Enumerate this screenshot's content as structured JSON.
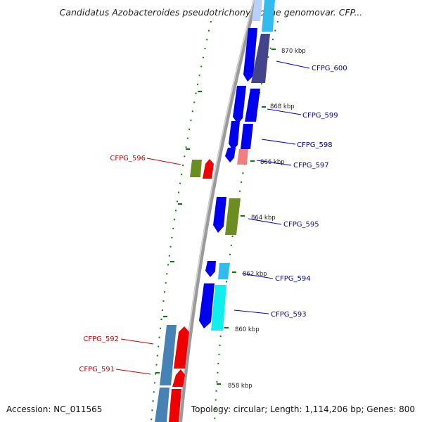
{
  "title": "Candidatus Azobacteroides pseudotrichonymphae genomovar. CFP...",
  "footer": {
    "accession": "Accession: NC_011565",
    "summary": "Topology: circular; Length: 1,114,206 bp; Genes: 800"
  },
  "colors": {
    "forward_cds": "#0000ee",
    "reverse_cds": "#ee0000",
    "light_blue": "#33bbee",
    "cyan": "#11eeee",
    "olive": "#6b8e23",
    "slate": "#44448a",
    "steel_blue": "#4682b4",
    "salmon": "#f08080",
    "tick_green": "#008000",
    "backbone": "#888888"
  },
  "ruler": [
    {
      "label": "870 kbp"
    },
    {
      "label": "868 kbp"
    },
    {
      "label": "866 kbp"
    },
    {
      "label": "864 kbp"
    },
    {
      "label": "862 kbp"
    },
    {
      "label": "860 kbp"
    },
    {
      "label": "858 kbp"
    }
  ],
  "genes": [
    {
      "label": "CFPG_600",
      "strand": "forward"
    },
    {
      "label": "CFPG_599",
      "strand": "forward"
    },
    {
      "label": "CFPG_598",
      "strand": "forward"
    },
    {
      "label": "CFPG_597",
      "strand": "forward"
    },
    {
      "label": "CFPG_595",
      "strand": "forward"
    },
    {
      "label": "CFPG_594",
      "strand": "forward"
    },
    {
      "label": "CFPG_593",
      "strand": "forward"
    },
    {
      "label": "CFPG_596",
      "strand": "reverse"
    },
    {
      "label": "CFPG_592",
      "strand": "reverse"
    },
    {
      "label": "CFPG_591",
      "strand": "reverse"
    }
  ],
  "icons": [
    "feature-arrow",
    "backbone-arc",
    "tick-mark"
  ]
}
